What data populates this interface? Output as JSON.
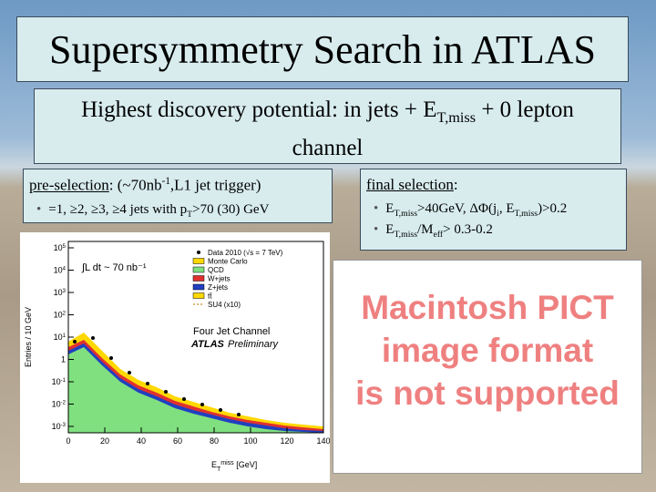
{
  "title": "Supersymmetry Search in ATLAS",
  "subtitle": [
    {
      "t": "Highest discovery potential: in jets + E"
    },
    {
      "t": "T,miss",
      "s": "sub"
    },
    {
      "t": " + 0 lepton channel"
    }
  ],
  "left_box": {
    "heading": [
      {
        "t": "pre-selection",
        "s": "u"
      },
      {
        "t": ": (~70nb"
      },
      {
        "t": "-1",
        "s": "sup"
      },
      {
        "t": ",L1 jet trigger)"
      }
    ],
    "bullets": [
      [
        {
          "t": "=1, ≥2, ≥3, ≥4 jets with p"
        },
        {
          "t": "T",
          "s": "sub"
        },
        {
          "t": ">70 (30) GeV"
        }
      ]
    ]
  },
  "right_box": {
    "heading": [
      {
        "t": "final selection",
        "s": "u"
      },
      {
        "t": ":"
      }
    ],
    "bullets": [
      [
        {
          "t": "E"
        },
        {
          "t": "T,miss",
          "s": "sub"
        },
        {
          "t": ">40GeV, ΔΦ(j"
        },
        {
          "t": "i",
          "s": "sub"
        },
        {
          "t": ", E"
        },
        {
          "t": "T,miss",
          "s": "sub"
        },
        {
          "t": ")>0.2"
        }
      ],
      [
        {
          "t": "E"
        },
        {
          "t": "T,miss",
          "s": "sub"
        },
        {
          "t": "/M"
        },
        {
          "t": "eff",
          "s": "sub"
        },
        {
          "t": "> 0.3-0.2"
        }
      ]
    ]
  },
  "plot": {
    "y_label": "Entries / 10 GeV",
    "x_label": [
      {
        "t": "E"
      },
      {
        "t": "T",
        "s": "sub"
      },
      {
        "t": "miss",
        "s": "sup"
      },
      {
        "t": " [GeV]"
      }
    ],
    "yticks": [
      {
        "base": "10",
        "exp": "5"
      },
      {
        "base": "10",
        "exp": "4"
      },
      {
        "base": "10",
        "exp": "3"
      },
      {
        "base": "10",
        "exp": "2"
      },
      {
        "base": "10",
        "exp": "1"
      },
      {
        "base": "1",
        "exp": ""
      },
      {
        "base": "10",
        "exp": "-1"
      },
      {
        "base": "10",
        "exp": "-2"
      },
      {
        "base": "10",
        "exp": "-3"
      }
    ],
    "xticks": [
      "0",
      "20",
      "40",
      "60",
      "80",
      "100",
      "120",
      "140"
    ],
    "lumi": "∫L dt ~ 70 nb⁻¹",
    "legend": [
      "Data 2010 (√s = 7 TeV)",
      "Monte Carlo",
      "QCD",
      "W+jets",
      "Z+jets",
      "tt̄",
      "SU4 (x10)"
    ],
    "channel": "Four Jet Channel",
    "atlas": "ATLAS",
    "preliminary": "Preliminary"
  },
  "pict_message": [
    "Macintosh PICT",
    "image format",
    "is not supported"
  ]
}
